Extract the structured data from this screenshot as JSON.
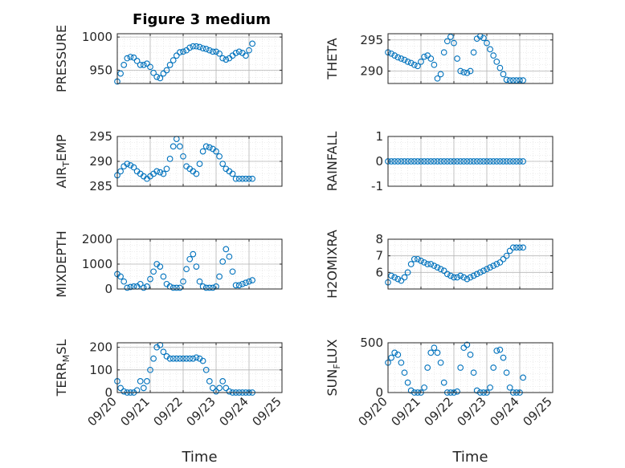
{
  "figure_title": "Figure 3 medium",
  "colors": {
    "marker": "#0072BD",
    "axis": "#262626",
    "grid": "#b5b5b5"
  },
  "chart_data": [
    {
      "type": "scatter",
      "ylabel": "PRESSURE",
      "ylim": [
        930,
        1005
      ],
      "yticks": [
        950,
        1000
      ],
      "xlim": [
        0,
        5
      ],
      "xticks": [
        0,
        1,
        2,
        3,
        4,
        5
      ],
      "xticklabels": [
        "09/20",
        "09/21",
        "09/22",
        "09/23",
        "09/24",
        "09/25"
      ],
      "xlabel": "",
      "grid": true,
      "series": [
        {
          "x": [
            0.0,
            0.1,
            0.2,
            0.3,
            0.4,
            0.5,
            0.6,
            0.7,
            0.8,
            0.9,
            1.0,
            1.1,
            1.2,
            1.3,
            1.4,
            1.5,
            1.6,
            1.7,
            1.8,
            1.9,
            2.0,
            2.1,
            2.2,
            2.3,
            2.4,
            2.5,
            2.6,
            2.7,
            2.8,
            2.9,
            3.0,
            3.1,
            3.2,
            3.3,
            3.4,
            3.5,
            3.6,
            3.7,
            3.8,
            3.9,
            4.0,
            4.1
          ],
          "y": [
            933,
            945,
            958,
            968,
            970,
            969,
            964,
            958,
            958,
            960,
            955,
            946,
            940,
            938,
            945,
            950,
            958,
            965,
            972,
            977,
            978,
            980,
            984,
            986,
            986,
            985,
            983,
            982,
            980,
            978,
            978,
            975,
            968,
            966,
            968,
            972,
            976,
            978,
            976,
            972,
            980,
            990
          ]
        }
      ]
    },
    {
      "type": "scatter",
      "ylabel": "THETA",
      "ylim": [
        288,
        296
      ],
      "yticks": [
        290,
        295
      ],
      "xlim": [
        0,
        5
      ],
      "xticks": [
        0,
        1,
        2,
        3,
        4,
        5
      ],
      "xticklabels": [
        "09/20",
        "09/21",
        "09/22",
        "09/23",
        "09/24",
        "09/25"
      ],
      "xlabel": "",
      "grid": true,
      "series": [
        {
          "x": [
            0.0,
            0.1,
            0.2,
            0.3,
            0.4,
            0.5,
            0.6,
            0.7,
            0.8,
            0.9,
            1.0,
            1.1,
            1.2,
            1.3,
            1.4,
            1.5,
            1.6,
            1.7,
            1.8,
            1.9,
            2.0,
            2.1,
            2.2,
            2.3,
            2.4,
            2.5,
            2.6,
            2.7,
            2.8,
            2.9,
            3.0,
            3.1,
            3.2,
            3.3,
            3.4,
            3.5,
            3.6,
            3.7,
            3.8,
            3.9,
            4.0,
            4.1
          ],
          "y": [
            293,
            292.8,
            292.5,
            292.2,
            292.0,
            291.8,
            291.5,
            291.3,
            291.0,
            290.8,
            291.5,
            292.3,
            292.5,
            292.0,
            291.0,
            288.8,
            289.5,
            293.0,
            294.8,
            295.5,
            294.5,
            292.0,
            290.0,
            289.8,
            289.7,
            290.0,
            293.0,
            295.2,
            295.6,
            295.3,
            294.5,
            293.5,
            292.5,
            291.5,
            290.5,
            289.5,
            288.6,
            288.5,
            288.5,
            288.5,
            288.5,
            288.5
          ]
        }
      ]
    },
    {
      "type": "scatter",
      "ylabel": "AIR_TEMP",
      "ylim": [
        285,
        295
      ],
      "yticks": [
        285,
        290,
        295
      ],
      "xlim": [
        0,
        5
      ],
      "xticks": [
        0,
        1,
        2,
        3,
        4,
        5
      ],
      "xticklabels": [
        "09/20",
        "09/21",
        "09/22",
        "09/23",
        "09/24",
        "09/25"
      ],
      "xlabel": "",
      "grid": true,
      "series": [
        {
          "x": [
            0.0,
            0.1,
            0.2,
            0.3,
            0.4,
            0.5,
            0.6,
            0.7,
            0.8,
            0.9,
            1.0,
            1.1,
            1.2,
            1.3,
            1.4,
            1.5,
            1.6,
            1.7,
            1.8,
            1.9,
            2.0,
            2.1,
            2.2,
            2.3,
            2.4,
            2.5,
            2.6,
            2.7,
            2.8,
            2.9,
            3.0,
            3.1,
            3.2,
            3.3,
            3.4,
            3.5,
            3.6,
            3.7,
            3.8,
            3.9,
            4.0,
            4.1
          ],
          "y": [
            287.2,
            288.0,
            289.0,
            289.5,
            289.2,
            288.8,
            288.0,
            287.5,
            287.0,
            286.5,
            287.0,
            287.5,
            288.0,
            287.8,
            287.5,
            288.5,
            290.5,
            293.0,
            294.5,
            293.0,
            291.0,
            289.0,
            288.5,
            288.0,
            287.5,
            289.5,
            292.0,
            293.0,
            292.8,
            292.5,
            292.0,
            291.0,
            289.5,
            288.5,
            288.0,
            287.5,
            286.5,
            286.5,
            286.5,
            286.5,
            286.5,
            286.5
          ]
        }
      ]
    },
    {
      "type": "scatter",
      "ylabel": "RAINFALL",
      "ylim": [
        -1,
        1
      ],
      "yticks": [
        -1,
        0,
        1
      ],
      "xlim": [
        0,
        5
      ],
      "xticks": [
        0,
        1,
        2,
        3,
        4,
        5
      ],
      "xticklabels": [
        "09/20",
        "09/21",
        "09/22",
        "09/23",
        "09/24",
        "09/25"
      ],
      "xlabel": "",
      "grid": true,
      "series": [
        {
          "x": [
            0.0,
            0.1,
            0.2,
            0.3,
            0.4,
            0.5,
            0.6,
            0.7,
            0.8,
            0.9,
            1.0,
            1.1,
            1.2,
            1.3,
            1.4,
            1.5,
            1.6,
            1.7,
            1.8,
            1.9,
            2.0,
            2.1,
            2.2,
            2.3,
            2.4,
            2.5,
            2.6,
            2.7,
            2.8,
            2.9,
            3.0,
            3.1,
            3.2,
            3.3,
            3.4,
            3.5,
            3.6,
            3.7,
            3.8,
            3.9,
            4.0,
            4.1
          ],
          "y": [
            0,
            0,
            0,
            0,
            0,
            0,
            0,
            0,
            0,
            0,
            0,
            0,
            0,
            0,
            0,
            0,
            0,
            0,
            0,
            0,
            0,
            0,
            0,
            0,
            0,
            0,
            0,
            0,
            0,
            0,
            0,
            0,
            0,
            0,
            0,
            0,
            0,
            0,
            0,
            0,
            0,
            0
          ]
        }
      ]
    },
    {
      "type": "scatter",
      "ylabel": "MIXDEPTH",
      "ylim": [
        0,
        2000
      ],
      "yticks": [
        0,
        1000,
        2000
      ],
      "xlim": [
        0,
        5
      ],
      "xticks": [
        0,
        1,
        2,
        3,
        4,
        5
      ],
      "xticklabels": [
        "09/20",
        "09/21",
        "09/22",
        "09/23",
        "09/24",
        "09/25"
      ],
      "xlabel": "",
      "grid": true,
      "series": [
        {
          "x": [
            0.0,
            0.1,
            0.2,
            0.3,
            0.4,
            0.5,
            0.6,
            0.7,
            0.8,
            0.9,
            1.0,
            1.1,
            1.2,
            1.3,
            1.4,
            1.5,
            1.6,
            1.7,
            1.8,
            1.9,
            2.0,
            2.1,
            2.2,
            2.3,
            2.4,
            2.5,
            2.6,
            2.7,
            2.8,
            2.9,
            3.0,
            3.1,
            3.2,
            3.3,
            3.4,
            3.5,
            3.6,
            3.7,
            3.8,
            3.9,
            4.0,
            4.1
          ],
          "y": [
            600,
            500,
            300,
            50,
            80,
            100,
            100,
            200,
            50,
            100,
            400,
            700,
            1000,
            900,
            500,
            200,
            100,
            50,
            50,
            50,
            300,
            800,
            1200,
            1400,
            900,
            300,
            100,
            50,
            50,
            50,
            100,
            500,
            1100,
            1600,
            1300,
            700,
            150,
            150,
            200,
            250,
            300,
            350
          ]
        }
      ]
    },
    {
      "type": "scatter",
      "ylabel": "H2OMIXRA",
      "ylim": [
        5,
        8
      ],
      "yticks": [
        6,
        7,
        8
      ],
      "xlim": [
        0,
        5
      ],
      "xticks": [
        0,
        1,
        2,
        3,
        4,
        5
      ],
      "xticklabels": [
        "09/20",
        "09/21",
        "09/22",
        "09/23",
        "09/24",
        "09/25"
      ],
      "xlabel": "",
      "grid": true,
      "series": [
        {
          "x": [
            0.0,
            0.1,
            0.2,
            0.3,
            0.4,
            0.5,
            0.6,
            0.7,
            0.8,
            0.9,
            1.0,
            1.1,
            1.2,
            1.3,
            1.4,
            1.5,
            1.6,
            1.7,
            1.8,
            1.9,
            2.0,
            2.1,
            2.2,
            2.3,
            2.4,
            2.5,
            2.6,
            2.7,
            2.8,
            2.9,
            3.0,
            3.1,
            3.2,
            3.3,
            3.4,
            3.5,
            3.6,
            3.7,
            3.8,
            3.9,
            4.0,
            4.1
          ],
          "y": [
            5.4,
            5.8,
            5.7,
            5.6,
            5.5,
            5.7,
            6.0,
            6.5,
            6.8,
            6.8,
            6.7,
            6.6,
            6.5,
            6.5,
            6.4,
            6.3,
            6.2,
            6.1,
            5.9,
            5.8,
            5.7,
            5.7,
            5.8,
            5.7,
            5.6,
            5.7,
            5.8,
            5.9,
            6.0,
            6.1,
            6.2,
            6.3,
            6.4,
            6.5,
            6.6,
            6.8,
            7.0,
            7.3,
            7.5,
            7.5,
            7.5,
            7.5
          ]
        }
      ]
    },
    {
      "type": "scatter",
      "ylabel": "TERR_MSL",
      "ylim": [
        0,
        220
      ],
      "yticks": [
        0,
        100,
        200
      ],
      "xlim": [
        0,
        5
      ],
      "xticks": [
        0,
        1,
        2,
        3,
        4,
        5
      ],
      "xticklabels": [
        "09/20",
        "09/21",
        "09/22",
        "09/23",
        "09/24",
        "09/25"
      ],
      "xlabel": "Time",
      "grid": true,
      "series": [
        {
          "x": [
            0.0,
            0.1,
            0.2,
            0.3,
            0.4,
            0.5,
            0.6,
            0.7,
            0.8,
            0.9,
            1.0,
            1.1,
            1.2,
            1.3,
            1.4,
            1.5,
            1.6,
            1.7,
            1.8,
            1.9,
            2.0,
            2.1,
            2.2,
            2.3,
            2.4,
            2.5,
            2.6,
            2.7,
            2.8,
            2.9,
            3.0,
            3.1,
            3.2,
            3.3,
            3.4,
            3.5,
            3.6,
            3.7,
            3.8,
            3.9,
            4.0,
            4.1
          ],
          "y": [
            50,
            20,
            5,
            0,
            0,
            0,
            10,
            50,
            20,
            50,
            100,
            150,
            200,
            210,
            180,
            160,
            150,
            150,
            150,
            150,
            150,
            150,
            150,
            150,
            155,
            150,
            140,
            100,
            50,
            20,
            5,
            20,
            50,
            20,
            5,
            0,
            0,
            0,
            0,
            0,
            0,
            0
          ]
        }
      ]
    },
    {
      "type": "scatter",
      "ylabel": "SUN_FLUX",
      "ylim": [
        0,
        500
      ],
      "yticks": [
        0,
        500
      ],
      "xlim": [
        0,
        5
      ],
      "xticks": [
        0,
        1,
        2,
        3,
        4,
        5
      ],
      "xticklabels": [
        "09/20",
        "09/21",
        "09/22",
        "09/23",
        "09/24",
        "09/25"
      ],
      "xlabel": "Time",
      "grid": true,
      "series": [
        {
          "x": [
            0.0,
            0.1,
            0.2,
            0.3,
            0.4,
            0.5,
            0.6,
            0.7,
            0.8,
            0.9,
            1.0,
            1.1,
            1.2,
            1.3,
            1.4,
            1.5,
            1.6,
            1.7,
            1.8,
            1.9,
            2.0,
            2.1,
            2.2,
            2.3,
            2.4,
            2.5,
            2.6,
            2.7,
            2.8,
            2.9,
            3.0,
            3.1,
            3.2,
            3.3,
            3.4,
            3.5,
            3.6,
            3.7,
            3.8,
            3.9,
            4.0,
            4.1
          ],
          "y": [
            300,
            350,
            400,
            380,
            300,
            200,
            100,
            20,
            0,
            0,
            0,
            50,
            250,
            400,
            450,
            400,
            300,
            100,
            0,
            0,
            0,
            10,
            250,
            450,
            480,
            380,
            200,
            20,
            0,
            0,
            0,
            50,
            250,
            420,
            430,
            350,
            200,
            50,
            0,
            0,
            0,
            150
          ]
        }
      ]
    }
  ]
}
